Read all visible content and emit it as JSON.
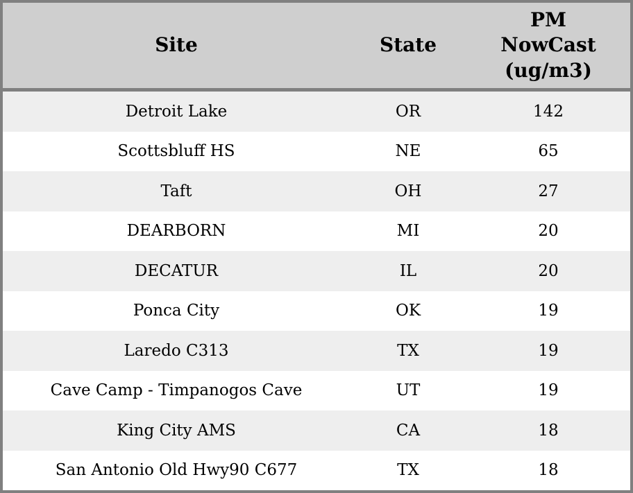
{
  "table": {
    "columns": [
      {
        "id": "site",
        "label": "Site"
      },
      {
        "id": "state",
        "label": "State"
      },
      {
        "id": "pm_nowcast",
        "label": "PM NowCast (ug/m3)",
        "label_lines": [
          "PM",
          "NowCast",
          "(ug/m3)"
        ]
      }
    ],
    "rows": [
      {
        "site": "Detroit Lake",
        "state": "OR",
        "pm_nowcast": "142"
      },
      {
        "site": "Scottsbluff HS",
        "state": "NE",
        "pm_nowcast": "65"
      },
      {
        "site": "Taft",
        "state": "OH",
        "pm_nowcast": "27"
      },
      {
        "site": "DEARBORN",
        "state": "MI",
        "pm_nowcast": "20"
      },
      {
        "site": "DECATUR",
        "state": "IL",
        "pm_nowcast": "20"
      },
      {
        "site": "Ponca City",
        "state": "OK",
        "pm_nowcast": "19"
      },
      {
        "site": "Laredo C313",
        "state": "TX",
        "pm_nowcast": "19"
      },
      {
        "site": "Cave Camp - Timpanogos Cave",
        "state": "UT",
        "pm_nowcast": "19"
      },
      {
        "site": "King City AMS",
        "state": "CA",
        "pm_nowcast": "18"
      },
      {
        "site": "San Antonio Old Hwy90 C677",
        "state": "TX",
        "pm_nowcast": "18"
      }
    ],
    "colors": {
      "outer_border": "#808080",
      "header_bg": "#CFCFCF",
      "header_separator": "#808080",
      "row_alt_bg": "#EEEEEE",
      "row_bg": "#FFFFFF",
      "text": "#000000"
    }
  }
}
